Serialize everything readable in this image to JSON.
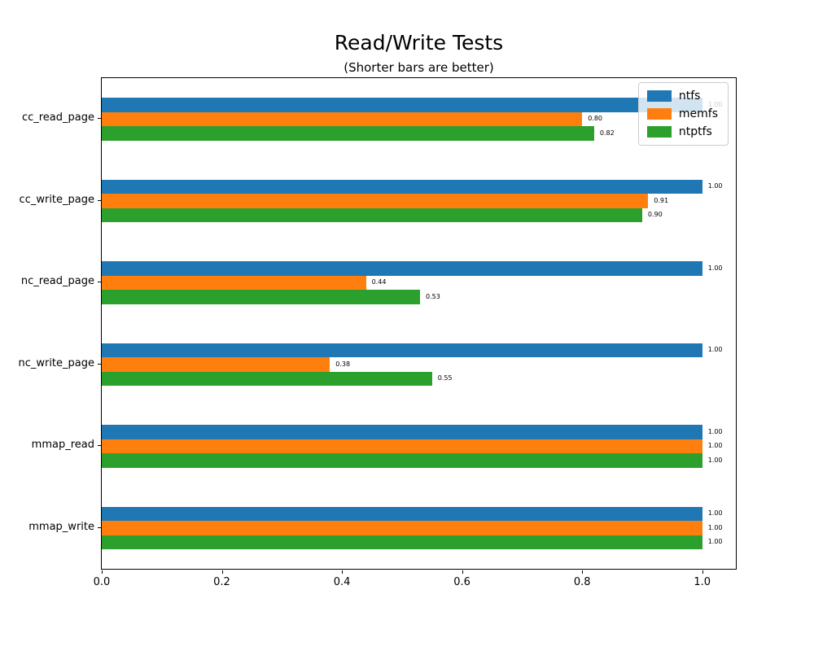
{
  "figure": {
    "title": "Read/Write Tests",
    "subtitle": "(Shorter bars are better)"
  },
  "chart_data": {
    "type": "bar",
    "orientation": "horizontal",
    "title": "Read/Write Tests",
    "subtitle": "(Shorter bars are better)",
    "categories": [
      "cc_read_page",
      "cc_write_page",
      "nc_read_page",
      "nc_write_page",
      "mmap_read",
      "mmap_write"
    ],
    "series": [
      {
        "name": "ntfs",
        "color": "#1f77b4",
        "values": [
          1.0,
          1.0,
          1.0,
          1.0,
          1.0,
          1.0
        ]
      },
      {
        "name": "memfs",
        "color": "#ff7f0e",
        "values": [
          0.8,
          0.91,
          0.44,
          0.38,
          1.0,
          1.0
        ]
      },
      {
        "name": "ntptfs",
        "color": "#2ca02c",
        "values": [
          0.82,
          0.9,
          0.53,
          0.55,
          1.0,
          1.0
        ]
      }
    ],
    "bar_value_labels": [
      [
        "1.00",
        "1.00",
        "1.00",
        "1.00",
        "1.00",
        "1.00"
      ],
      [
        "0.80",
        "0.91",
        "0.44",
        "0.38",
        "1.00",
        "1.00"
      ],
      [
        "0.82",
        "0.90",
        "0.53",
        "0.55",
        "1.00",
        "1.00"
      ]
    ],
    "xlabel": "",
    "ylabel": "",
    "xlim": [
      0,
      1.056
    ],
    "xtick_values": [
      0.0,
      0.2,
      0.4,
      0.6,
      0.8,
      1.0
    ],
    "xtick_labels": [
      "0.0",
      "0.2",
      "0.4",
      "0.6",
      "0.8",
      "1.0"
    ],
    "grid": false,
    "legend": {
      "position": "upper-right",
      "entries": [
        "ntfs",
        "memfs",
        "ntptfs"
      ]
    },
    "value_label_decimals": 2
  },
  "colors": {
    "axis": "#000000",
    "background": "#ffffff",
    "legend_border": "#cccccc",
    "series_ntfs": "#1f77b4",
    "series_memfs": "#ff7f0e",
    "series_ntptfs": "#2ca02c"
  }
}
